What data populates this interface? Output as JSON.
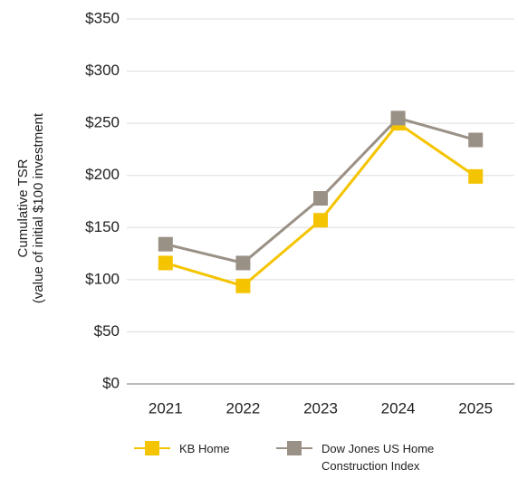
{
  "chart_data": {
    "type": "line",
    "y_label": [
      "Cumulative TSR",
      "(value of initial $100 investment"
    ],
    "categories": [
      "2021",
      "2022",
      "2023",
      "2024",
      "2025"
    ],
    "series": [
      {
        "name": "KB Home",
        "color": "#f5c400",
        "values": [
          116,
          94,
          157,
          250,
          199
        ]
      },
      {
        "name": "Dow Jones US Home Construction Index",
        "color": "#9a9186",
        "values": [
          134,
          116,
          178,
          255,
          234
        ]
      }
    ],
    "ylim": [
      0,
      350
    ],
    "yticks": [
      {
        "value": 0,
        "label": "$0"
      },
      {
        "value": 50,
        "label": "$50"
      },
      {
        "value": 100,
        "label": "$100"
      },
      {
        "value": 150,
        "label": "$150"
      },
      {
        "value": 200,
        "label": "$200"
      },
      {
        "value": 250,
        "label": "$250"
      },
      {
        "value": 300,
        "label": "$300"
      },
      {
        "value": 350,
        "label": "$350"
      }
    ],
    "grid": true
  }
}
